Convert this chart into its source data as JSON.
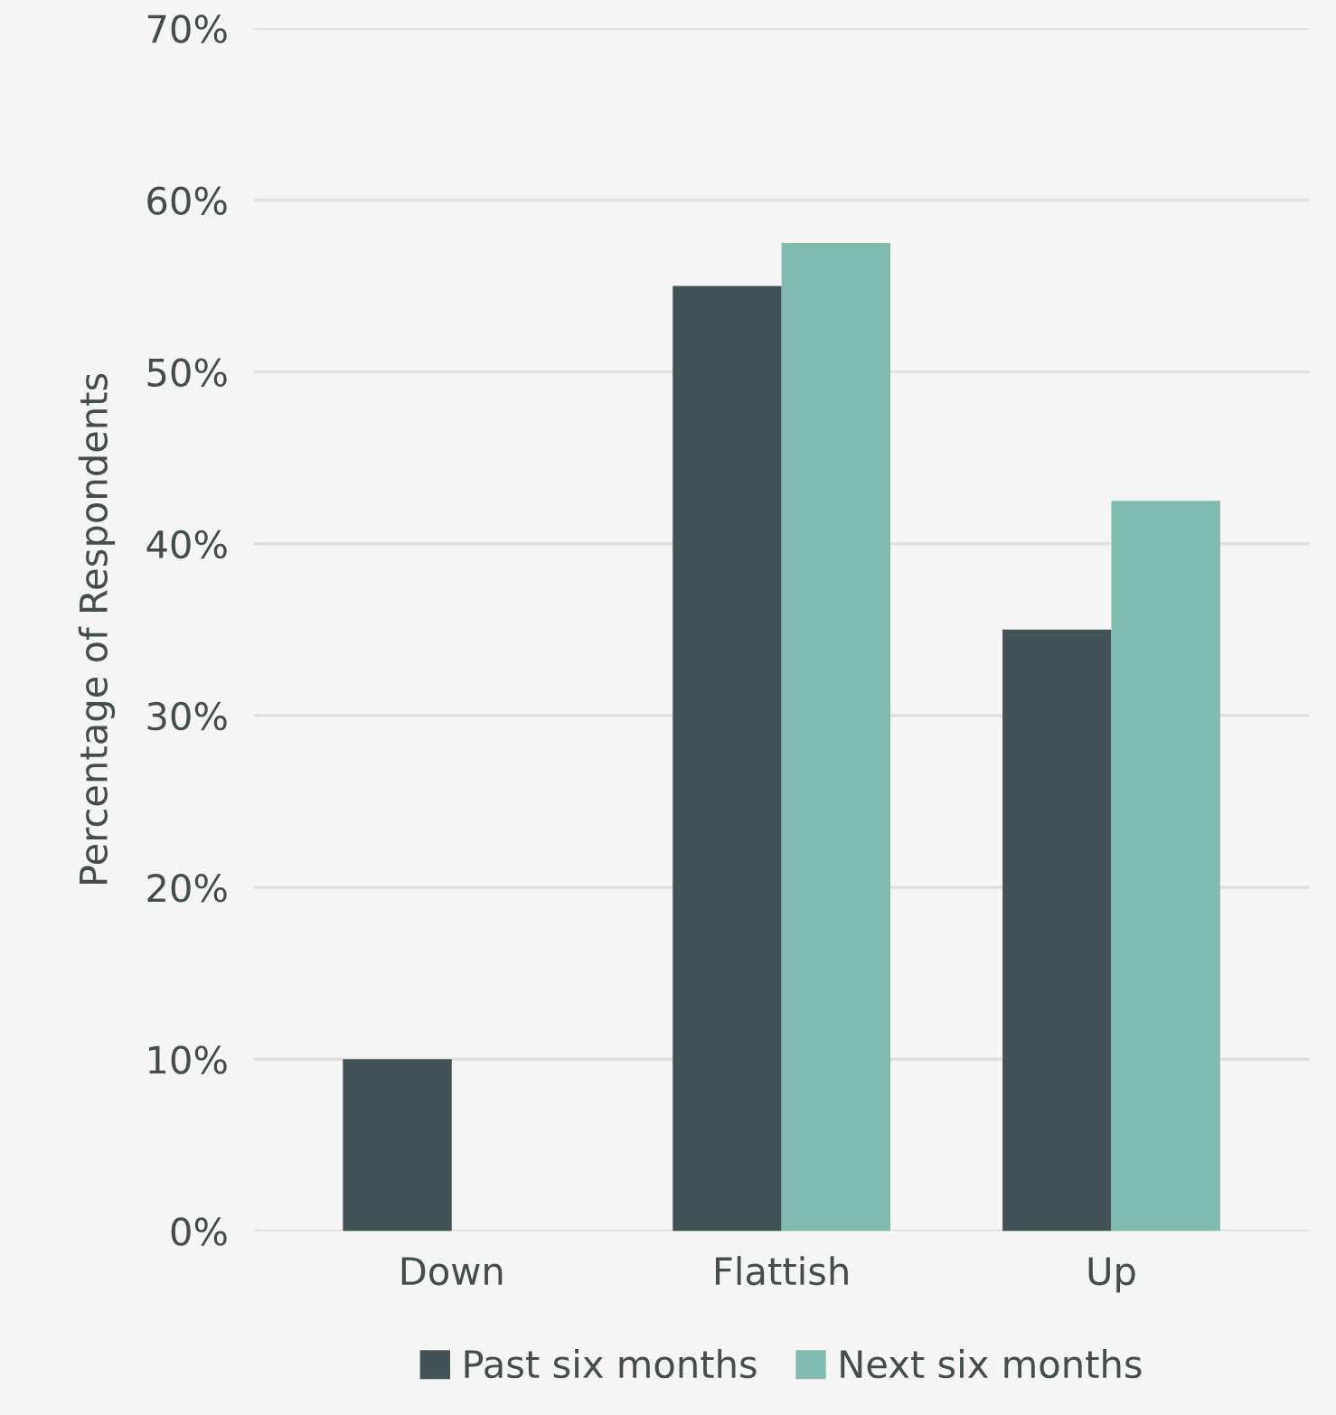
{
  "chart_data": {
    "type": "bar",
    "ylabel": "Percentage of Respondents",
    "categories": [
      "Down",
      "Flattish",
      "Up"
    ],
    "series": [
      {
        "name": "Past six months",
        "color": "#435254",
        "values": [
          10,
          55,
          35
        ]
      },
      {
        "name": "Next six months",
        "color": "#80bcad",
        "values": [
          null,
          57.5,
          42.5
        ]
      }
    ],
    "ylim": [
      0,
      70
    ],
    "yticks": [
      {
        "value": 0,
        "label": "0%"
      },
      {
        "value": 10,
        "label": "10%"
      },
      {
        "value": 20,
        "label": "20%"
      },
      {
        "value": 30,
        "label": "30%"
      },
      {
        "value": 40,
        "label": "40%"
      },
      {
        "value": 50,
        "label": "50%"
      },
      {
        "value": 60,
        "label": "60%"
      },
      {
        "value": 70,
        "label": "70%"
      }
    ],
    "grid": "y",
    "legend": "bottom"
  }
}
